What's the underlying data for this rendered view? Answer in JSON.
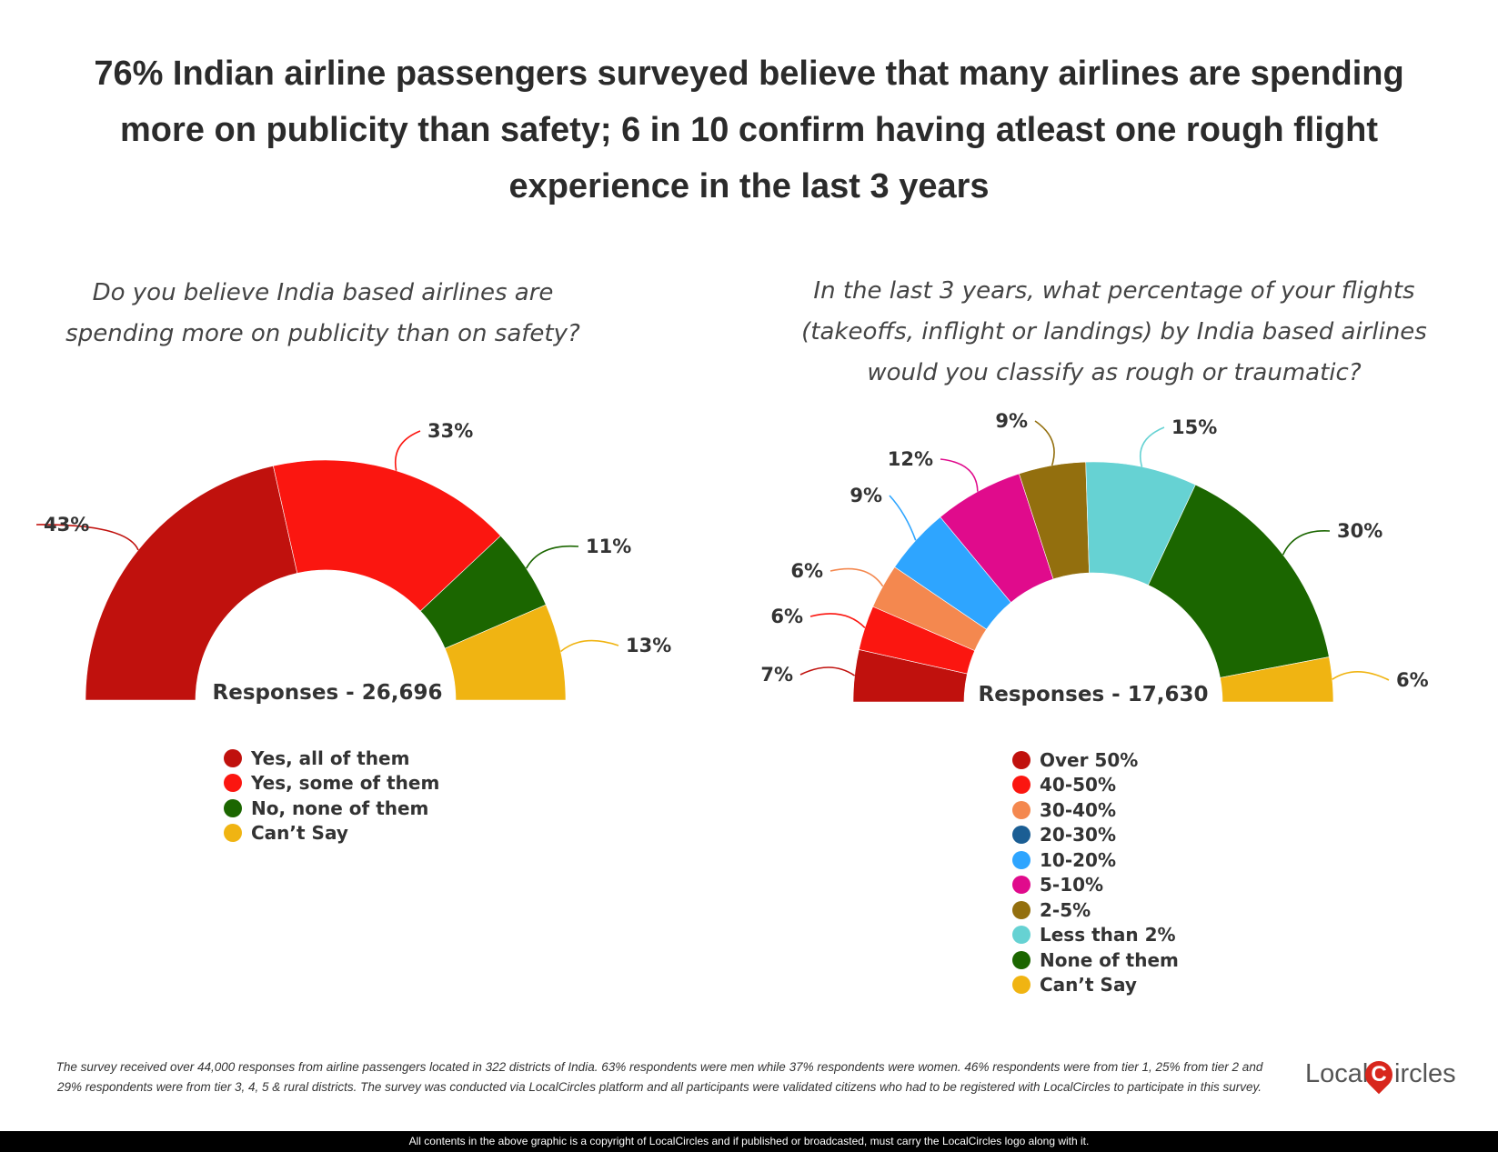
{
  "title": "76% Indian airline passengers surveyed believe that many airlines are spending more on publicity than safety; 6 in 10 confirm having atleast one rough flight experience in the last 3 years",
  "chart_data": [
    {
      "type": "pie",
      "subtype": "half-donut",
      "title": "Do you believe India based airlines are spending more on publicity than on safety?",
      "center_label": "Responses - 26,696",
      "legend_position": "bottom",
      "slices": [
        {
          "label": "Yes, all of them",
          "value": 43,
          "display": "43%",
          "color": "#c0110d"
        },
        {
          "label": "Yes, some of them",
          "value": 33,
          "display": "33%",
          "color": "#fb1610"
        },
        {
          "label": "No, none of them",
          "value": 11,
          "display": "11%",
          "color": "#1b6600"
        },
        {
          "label": "Can’t Say",
          "value": 13,
          "display": "13%",
          "color": "#f0b412"
        }
      ]
    },
    {
      "type": "pie",
      "subtype": "half-donut",
      "title": "In the last 3 years, what percentage of your flights (takeoffs, inflight or landings) by India based airlines would you classify as rough or traumatic?",
      "center_label": "Responses - 17,630",
      "legend_position": "bottom",
      "slices": [
        {
          "label": "Over 50%",
          "value": 7,
          "display": "7%",
          "color": "#c0110d"
        },
        {
          "label": "40-50%",
          "value": 6,
          "display": "6%",
          "color": "#fb1610"
        },
        {
          "label": "30-40%",
          "value": 6,
          "display": "6%",
          "color": "#f4884f"
        },
        {
          "label": "20-30%",
          "value": 0,
          "display": "",
          "color": "#1b5e94"
        },
        {
          "label": "10-20%",
          "value": 9,
          "display": "9%",
          "color": "#2ea5ff"
        },
        {
          "label": "5-10%",
          "value": 12,
          "display": "12%",
          "color": "#e00b8c"
        },
        {
          "label": "2-5%",
          "value": 9,
          "display": "9%",
          "color": "#936f0e"
        },
        {
          "label": "Less than 2%",
          "value": 15,
          "display": "15%",
          "color": "#66d2d3"
        },
        {
          "label": "None of them",
          "value": 30,
          "display": "30%",
          "color": "#1b6600"
        },
        {
          "label": "Can’t Say",
          "value": 6,
          "display": "6%",
          "color": "#f0b412"
        }
      ]
    }
  ],
  "footnote": "The survey received over 44,000 responses from airline passengers located in 322 districts of India. 63% respondents were men while 37% respondents were women. 46% respondents were from tier 1, 25% from tier 2 and 29% respondents were from tier 3, 4, 5 & rural districts. The survey was conducted via LocalCircles platform and all participants were validated citizens who had to be registered with LocalCircles to participate in this survey.",
  "logo": {
    "part1": "Local",
    "pin_letter": "C",
    "part2": "ircles"
  },
  "copyright": "All contents in the above graphic is a copyright of LocalCircles and if published or broadcasted, must carry the LocalCircles logo along with it."
}
